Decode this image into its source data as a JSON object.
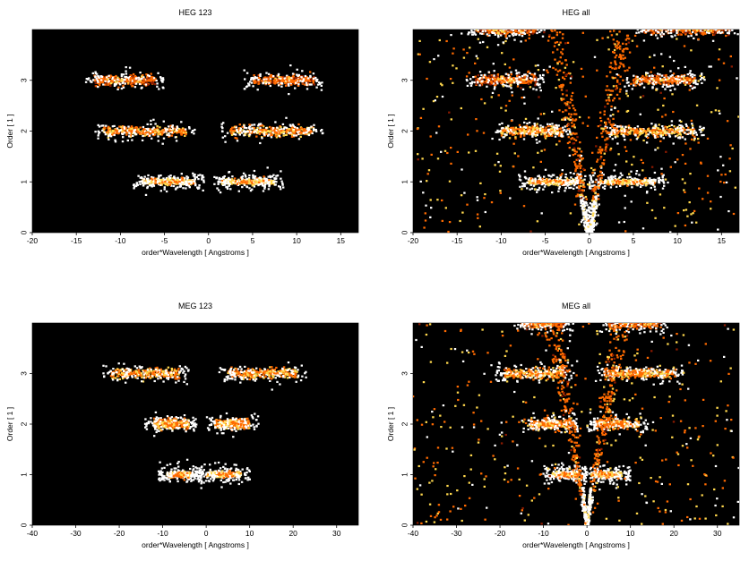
{
  "chart_data": [
    {
      "type": "heatmap",
      "title": "HEG 123",
      "xlabel": "order*Wavelength [ Angstroms ]",
      "ylabel": "Order [ 1 ]",
      "xlim": [
        -20,
        17
      ],
      "ylim": [
        0,
        4
      ],
      "xticks": [
        -20,
        -15,
        -10,
        -5,
        0,
        5,
        10,
        15
      ],
      "yticks": [
        0,
        1,
        2,
        3
      ],
      "grid": false,
      "colormap": [
        "#000000",
        "#8b1a00",
        "#ff6a00",
        "#ffd84d",
        "#ffffff"
      ],
      "features": [
        {
          "kind": "band",
          "order": 1,
          "x_range": [
            -7.5,
            -1.5
          ],
          "intensity": "high"
        },
        {
          "kind": "band",
          "order": 1,
          "x_range": [
            1.5,
            7.5
          ],
          "intensity": "high"
        },
        {
          "kind": "band",
          "order": 2,
          "x_range": [
            -12,
            -2.5
          ],
          "intensity": "medium"
        },
        {
          "kind": "band",
          "order": 2,
          "x_range": [
            2.5,
            12
          ],
          "intensity": "medium"
        },
        {
          "kind": "band",
          "order": 3,
          "x_range": [
            -13,
            -6
          ],
          "intensity": "low"
        },
        {
          "kind": "band",
          "order": 3,
          "x_range": [
            5,
            12
          ],
          "intensity": "low"
        }
      ]
    },
    {
      "type": "heatmap",
      "title": "HEG all",
      "xlabel": "order*Wavelength [ Angstroms ]",
      "ylabel": "Order [ 1 ]",
      "xlim": [
        -20,
        17
      ],
      "ylim": [
        0,
        4
      ],
      "xticks": [
        -20,
        -15,
        -10,
        -5,
        0,
        5,
        10,
        15
      ],
      "yticks": [
        0,
        1,
        2,
        3
      ],
      "grid": false,
      "colormap": [
        "#000000",
        "#8b1a00",
        "#ff6a00",
        "#ffd84d",
        "#ffffff"
      ],
      "features": [
        {
          "kind": "band",
          "order": 1,
          "x_range": [
            -7,
            -1.5
          ],
          "intensity": "high"
        },
        {
          "kind": "band",
          "order": 1,
          "x_range": [
            1,
            7.5
          ],
          "intensity": "high"
        },
        {
          "kind": "band",
          "order": 2,
          "x_range": [
            -10,
            -3
          ],
          "intensity": "medium"
        },
        {
          "kind": "band",
          "order": 2,
          "x_range": [
            2.5,
            12
          ],
          "intensity": "medium"
        },
        {
          "kind": "band",
          "order": 3,
          "x_range": [
            -13,
            -6
          ],
          "intensity": "low"
        },
        {
          "kind": "band",
          "order": 3,
          "x_range": [
            5,
            12
          ],
          "intensity": "low"
        },
        {
          "kind": "band",
          "order": 4,
          "x_range": [
            -13,
            -6
          ],
          "intensity": "low"
        },
        {
          "kind": "band",
          "order": 4,
          "x_range": [
            6,
            16
          ],
          "intensity": "low"
        },
        {
          "kind": "v",
          "apex": [
            0,
            0
          ],
          "edges": [
            -5,
            5
          ],
          "top_order": 4,
          "intensity": "low"
        }
      ]
    },
    {
      "type": "heatmap",
      "title": "MEG 123",
      "xlabel": "order*Wavelength [ Angstroms ]",
      "ylabel": "Order [ 1 ]",
      "xlim": [
        -40,
        35
      ],
      "ylim": [
        0,
        4
      ],
      "xticks": [
        -40,
        -30,
        -20,
        -10,
        0,
        10,
        20,
        30
      ],
      "yticks": [
        0,
        1,
        2,
        3
      ],
      "grid": false,
      "colormap": [
        "#000000",
        "#8b1a00",
        "#ff6a00",
        "#ffd84d",
        "#ffffff"
      ],
      "features": [
        {
          "kind": "band",
          "order": 1,
          "x_range": [
            -9,
            -3
          ],
          "intensity": "high"
        },
        {
          "kind": "band",
          "order": 1,
          "x_range": [
            0,
            8
          ],
          "intensity": "high"
        },
        {
          "kind": "band",
          "order": 2,
          "x_range": [
            -12,
            -4
          ],
          "intensity": "medium"
        },
        {
          "kind": "band",
          "order": 2,
          "x_range": [
            2,
            10
          ],
          "intensity": "medium"
        },
        {
          "kind": "band",
          "order": 3,
          "x_range": [
            -22,
            -6
          ],
          "intensity": "medium"
        },
        {
          "kind": "band",
          "order": 3,
          "x_range": [
            5,
            21
          ],
          "intensity": "medium"
        }
      ]
    },
    {
      "type": "heatmap",
      "title": "MEG all",
      "xlabel": "order*Wavelength [ Angstroms ]",
      "ylabel": "Order [ 1 ]",
      "xlim": [
        -40,
        35
      ],
      "ylim": [
        0,
        4
      ],
      "xticks": [
        -40,
        -30,
        -20,
        -10,
        0,
        10,
        20,
        30
      ],
      "yticks": [
        0,
        1,
        2,
        3
      ],
      "grid": false,
      "colormap": [
        "#000000",
        "#8b1a00",
        "#ff6a00",
        "#ffd84d",
        "#ffffff"
      ],
      "features": [
        {
          "kind": "band",
          "order": 1,
          "x_range": [
            -8,
            -2
          ],
          "intensity": "high"
        },
        {
          "kind": "band",
          "order": 1,
          "x_range": [
            1,
            8
          ],
          "intensity": "high"
        },
        {
          "kind": "band",
          "order": 2,
          "x_range": [
            -13,
            -4
          ],
          "intensity": "medium"
        },
        {
          "kind": "band",
          "order": 2,
          "x_range": [
            2,
            12
          ],
          "intensity": "medium"
        },
        {
          "kind": "band",
          "order": 3,
          "x_range": [
            -19,
            -5
          ],
          "intensity": "medium"
        },
        {
          "kind": "band",
          "order": 3,
          "x_range": [
            4,
            20
          ],
          "intensity": "medium"
        },
        {
          "kind": "band",
          "order": 4,
          "x_range": [
            -15,
            -5
          ],
          "intensity": "low"
        },
        {
          "kind": "band",
          "order": 4,
          "x_range": [
            5,
            17
          ],
          "intensity": "low"
        },
        {
          "kind": "v",
          "apex": [
            0,
            0
          ],
          "edges": [
            -10,
            10
          ],
          "top_order": 4,
          "intensity": "low"
        }
      ]
    }
  ]
}
